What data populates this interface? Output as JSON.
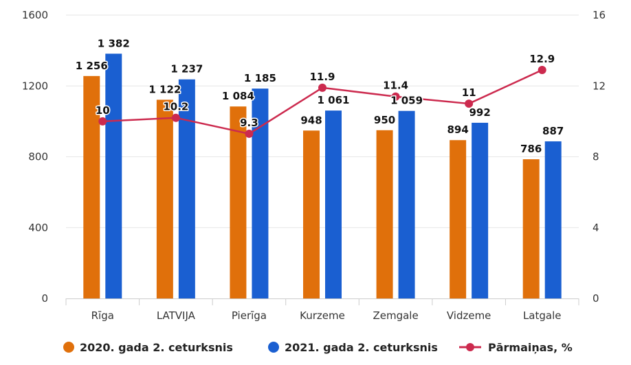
{
  "chart_data": {
    "type": "bar",
    "categories": [
      "Rīga",
      "LATVIJA",
      "Pierīga",
      "Kurzeme",
      "Zemgale",
      "Vidzeme",
      "Latgale"
    ],
    "series": [
      {
        "name": "2020. gada 2. ceturksnis",
        "kind": "bar",
        "axis": "left",
        "color": "#e0700b",
        "values": [
          1256,
          1122,
          1084,
          948,
          950,
          894,
          786
        ],
        "labels": [
          "1 256",
          "1 122",
          "1 084",
          "948",
          "950",
          "894",
          "786"
        ]
      },
      {
        "name": "2021. gada 2. ceturksnis",
        "kind": "bar",
        "axis": "left",
        "color": "#1a5fd1",
        "values": [
          1382,
          1237,
          1185,
          1061,
          1059,
          992,
          887
        ],
        "labels": [
          "1 382",
          "1 237",
          "1 185",
          "1 061",
          "1 059",
          "992",
          "887"
        ]
      },
      {
        "name": "Pārmaiņas, %",
        "kind": "line",
        "axis": "right",
        "color": "#cc2a4e",
        "values": [
          10,
          10.2,
          9.3,
          11.9,
          11.4,
          11,
          12.9
        ],
        "labels": [
          "10",
          "10.2",
          "9.3",
          "11.9",
          "11.4",
          "11",
          "12.9"
        ]
      }
    ],
    "y_left": {
      "min": 0,
      "max": 1600,
      "ticks": [
        "0",
        "400",
        "800",
        "1200",
        "1600"
      ],
      "tick_values": [
        0,
        400,
        800,
        1200,
        1600
      ]
    },
    "y_right": {
      "min": 0,
      "max": 16,
      "ticks": [
        "0",
        "4",
        "8",
        "12",
        "16"
      ],
      "tick_values": [
        0,
        4,
        8,
        12,
        16
      ]
    },
    "grid": true,
    "legend_position": "bottom"
  }
}
